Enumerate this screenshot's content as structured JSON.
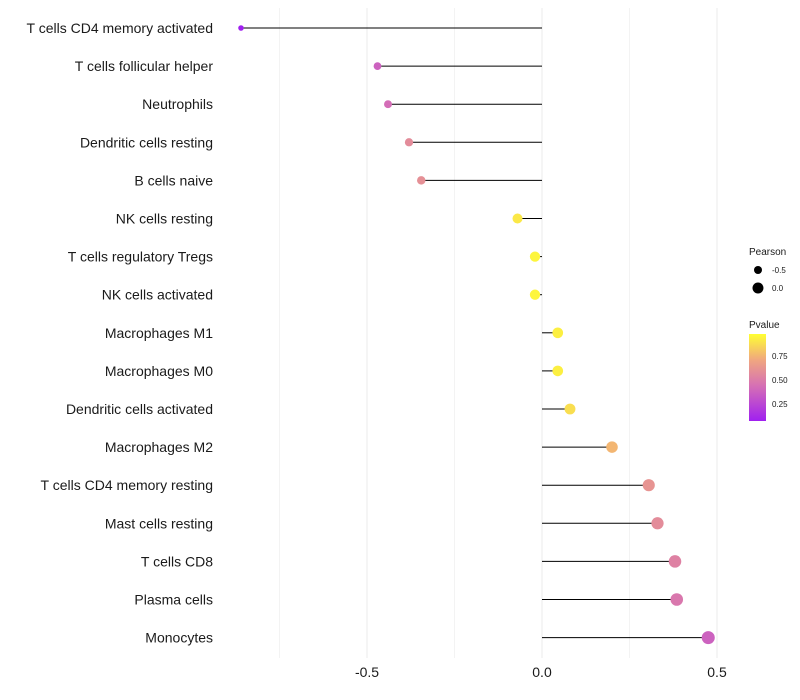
{
  "chart_data": {
    "type": "lollipop",
    "title": "",
    "xlabel": "",
    "ylabel": "",
    "xlim": [
      -0.9,
      0.5
    ],
    "xticks": [
      -0.5,
      0.0,
      0.5
    ],
    "xtick_labels": [
      "-0.5",
      "0.0",
      "0.5"
    ],
    "grid": true,
    "categories": [
      "T cells CD4 memory activated",
      "T cells follicular helper",
      "Neutrophils",
      "Dendritic cells resting",
      "B cells naive",
      "NK cells resting",
      "T cells regulatory  Tregs",
      "NK cells activated",
      "Macrophages M1",
      "Macrophages M0",
      "Dendritic cells activated",
      "Macrophages M2",
      "T cells CD4 memory resting",
      "Mast cells resting",
      "T cells CD8",
      "Plasma cells",
      "Monocytes"
    ],
    "pearson": [
      -0.86,
      -0.47,
      -0.44,
      -0.38,
      -0.345,
      -0.07,
      -0.02,
      -0.02,
      0.045,
      0.045,
      0.08,
      0.2,
      0.305,
      0.33,
      0.38,
      0.385,
      0.475
    ],
    "pvalue": [
      0.1,
      0.4,
      0.45,
      0.6,
      0.62,
      0.93,
      0.97,
      0.97,
      0.95,
      0.95,
      0.9,
      0.78,
      0.64,
      0.6,
      0.55,
      0.5,
      0.4
    ],
    "legend_size": {
      "title": "Pearson",
      "values": [
        -0.5,
        0.0
      ],
      "labels": [
        "-0.5",
        "0.0"
      ]
    },
    "legend_color": {
      "title": "Pvalue",
      "range": [
        0.1,
        1.0
      ],
      "ticks": [
        0.25,
        0.5,
        0.75
      ],
      "labels": [
        "0.25",
        "0.50",
        "0.75"
      ],
      "colors": [
        "#a020f0",
        "#d56fb5",
        "#f0a680",
        "#ffff33"
      ]
    },
    "stem_color": "#000000",
    "gridline_color": "#ebebeb"
  }
}
